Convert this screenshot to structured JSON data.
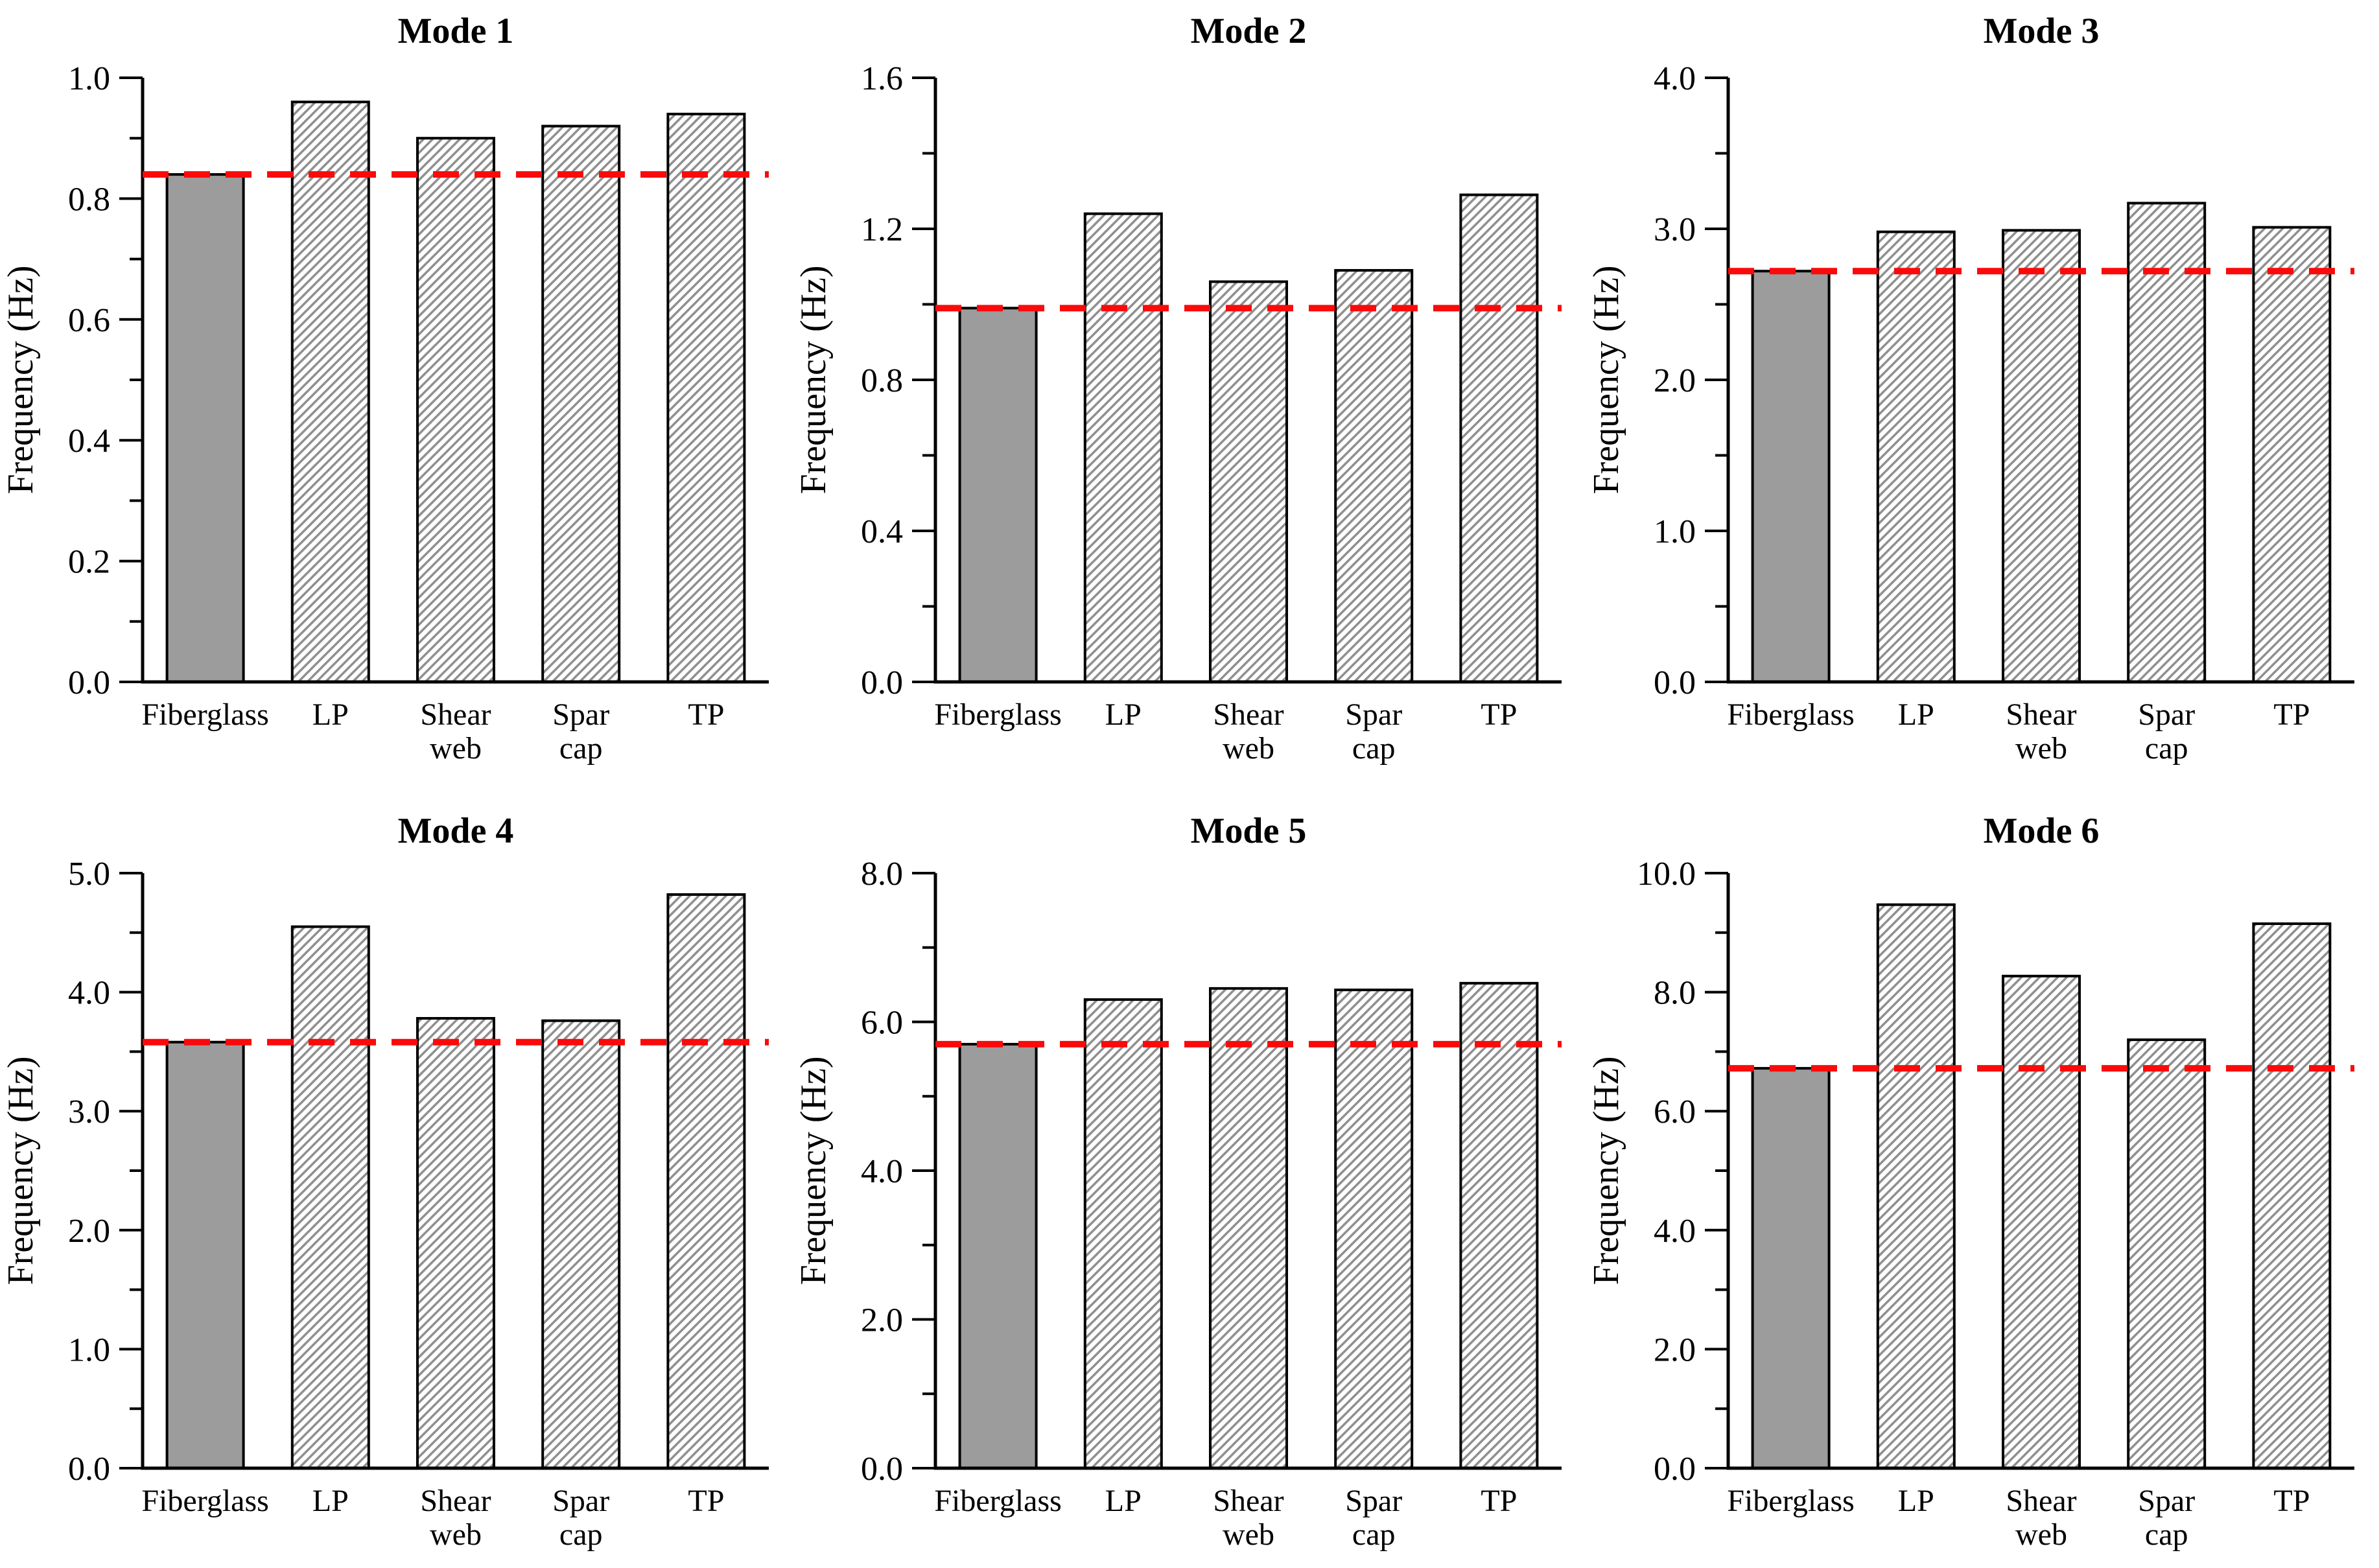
{
  "figure": {
    "ylabel": "Frequency (Hz)",
    "categories": [
      "Fiberglass",
      "LP",
      "Shear web",
      "Spar cap",
      "TP"
    ],
    "highlight_category": "Fiberglass",
    "highlight_index": 0,
    "legend": "none",
    "grid": "off",
    "colors": {
      "background": "#ffffff",
      "solid_bar_fill": "#9c9c9c",
      "hatch_bar_background": "#ffffff",
      "hatch_line": "#909090",
      "bar_border": "#000000",
      "axis": "#000000",
      "text": "#000000",
      "reference_line": "#fa0a0a"
    }
  },
  "chart_data": [
    {
      "type": "bar",
      "title": "Mode 1",
      "xlabel": "",
      "ylabel": "Frequency (Hz)",
      "categories": [
        "Fiberglass",
        "LP",
        "Shear web",
        "Spar cap",
        "TP"
      ],
      "values": [
        0.84,
        0.96,
        0.9,
        0.92,
        0.94
      ],
      "reference_line": 0.84,
      "ylim": [
        0.0,
        1.0
      ],
      "ytick_step": 0.2,
      "yminor_step": 0.1,
      "ytick_labels": [
        "0.0",
        "0.2",
        "0.4",
        "0.6",
        "0.8",
        "1.0"
      ]
    },
    {
      "type": "bar",
      "title": "Mode 2",
      "xlabel": "",
      "ylabel": "Frequency (Hz)",
      "categories": [
        "Fiberglass",
        "LP",
        "Shear web",
        "Spar cap",
        "TP"
      ],
      "values": [
        0.99,
        1.24,
        1.06,
        1.09,
        1.29
      ],
      "reference_line": 0.99,
      "ylim": [
        0.0,
        1.6
      ],
      "ytick_step": 0.4,
      "yminor_step": 0.2,
      "ytick_labels": [
        "0.0",
        "0.4",
        "0.8",
        "1.2",
        "1.6"
      ]
    },
    {
      "type": "bar",
      "title": "Mode 3",
      "xlabel": "",
      "ylabel": "Frequency (Hz)",
      "categories": [
        "Fiberglass",
        "LP",
        "Shear web",
        "Spar cap",
        "TP"
      ],
      "values": [
        2.72,
        2.98,
        2.99,
        3.17,
        3.01
      ],
      "reference_line": 2.72,
      "ylim": [
        0.0,
        4.0
      ],
      "ytick_step": 1.0,
      "yminor_step": 0.5,
      "ytick_labels": [
        "0.0",
        "1.0",
        "2.0",
        "3.0",
        "4.0"
      ]
    },
    {
      "type": "bar",
      "title": "Mode 4",
      "xlabel": "",
      "ylabel": "Frequency (Hz)",
      "categories": [
        "Fiberglass",
        "LP",
        "Shear web",
        "Spar cap",
        "TP"
      ],
      "values": [
        3.58,
        4.55,
        3.78,
        3.76,
        4.82
      ],
      "reference_line": 3.58,
      "ylim": [
        0.0,
        5.0
      ],
      "ytick_step": 1.0,
      "yminor_step": 0.5,
      "ytick_labels": [
        "0.0",
        "1.0",
        "2.0",
        "3.0",
        "4.0",
        "5.0"
      ]
    },
    {
      "type": "bar",
      "title": "Mode 5",
      "xlabel": "",
      "ylabel": "Frequency (Hz)",
      "categories": [
        "Fiberglass",
        "LP",
        "Shear web",
        "Spar cap",
        "TP"
      ],
      "values": [
        5.7,
        6.3,
        6.45,
        6.43,
        6.52
      ],
      "reference_line": 5.7,
      "ylim": [
        0.0,
        8.0
      ],
      "ytick_step": 2.0,
      "yminor_step": 1.0,
      "ytick_labels": [
        "0.0",
        "2.0",
        "4.0",
        "6.0",
        "8.0"
      ]
    },
    {
      "type": "bar",
      "title": "Mode 6",
      "xlabel": "",
      "ylabel": "Frequency (Hz)",
      "categories": [
        "Fiberglass",
        "LP",
        "Shear web",
        "Spar cap",
        "TP"
      ],
      "values": [
        6.72,
        9.47,
        8.27,
        7.2,
        9.15
      ],
      "reference_line": 6.72,
      "ylim": [
        0.0,
        10.0
      ],
      "ytick_step": 2.0,
      "yminor_step": 1.0,
      "ytick_labels": [
        "0.0",
        "2.0",
        "4.0",
        "6.0",
        "8.0",
        "10.0"
      ]
    }
  ]
}
